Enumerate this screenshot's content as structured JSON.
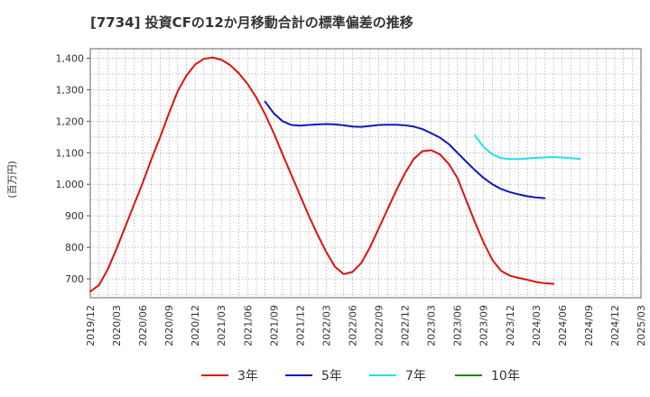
{
  "chart_data": {
    "type": "line",
    "title": "[7734]  投資CFの12か月移動合計の標準偏差の推移",
    "ylabel": "(百万円)",
    "xlabel": "",
    "ylim": [
      640,
      1430
    ],
    "yticks": [
      700,
      800,
      900,
      1000,
      1100,
      1200,
      1300,
      1400
    ],
    "ytick_labels": [
      "700",
      "800",
      "900",
      "1,000",
      "1,100",
      "1,200",
      "1,300",
      "1,400"
    ],
    "xticks": [
      "2019/12",
      "2020/03",
      "2020/06",
      "2020/09",
      "2020/12",
      "2021/03",
      "2021/06",
      "2021/09",
      "2021/12",
      "2022/03",
      "2022/06",
      "2022/09",
      "2022/12",
      "2023/03",
      "2023/06",
      "2023/09",
      "2023/12",
      "2024/03",
      "2024/06",
      "2024/09",
      "2024/12",
      "2025/03"
    ],
    "grid": true,
    "legend_position": "bottom",
    "series": [
      {
        "name": "3年",
        "color": "#dd1111",
        "start": "2019/12",
        "values": [
          660,
          680,
          730,
          795,
          865,
          935,
          1005,
          1080,
          1150,
          1225,
          1295,
          1345,
          1380,
          1398,
          1402,
          1395,
          1378,
          1352,
          1318,
          1275,
          1222,
          1162,
          1095,
          1030,
          965,
          900,
          840,
          785,
          738,
          715,
          722,
          750,
          800,
          860,
          920,
          980,
          1035,
          1080,
          1105,
          1108,
          1095,
          1065,
          1020,
          950,
          880,
          815,
          760,
          725,
          710,
          703,
          697,
          690,
          686,
          684
        ]
      },
      {
        "name": "5年",
        "color": "#1515bb",
        "start": "2021/08",
        "values": [
          1262,
          1225,
          1200,
          1188,
          1186,
          1188,
          1190,
          1191,
          1190,
          1187,
          1183,
          1182,
          1185,
          1188,
          1189,
          1189,
          1187,
          1183,
          1175,
          1162,
          1148,
          1128,
          1100,
          1072,
          1045,
          1020,
          1000,
          985,
          975,
          968,
          962,
          958,
          956
        ]
      },
      {
        "name": "7年",
        "color": "#22e0e8",
        "start": "2023/08",
        "values": [
          1155,
          1118,
          1095,
          1083,
          1080,
          1080,
          1082,
          1084,
          1085,
          1086,
          1085,
          1083,
          1080
        ]
      },
      {
        "name": "10年",
        "color": "#1a8a1a",
        "start": "",
        "values": []
      }
    ]
  }
}
